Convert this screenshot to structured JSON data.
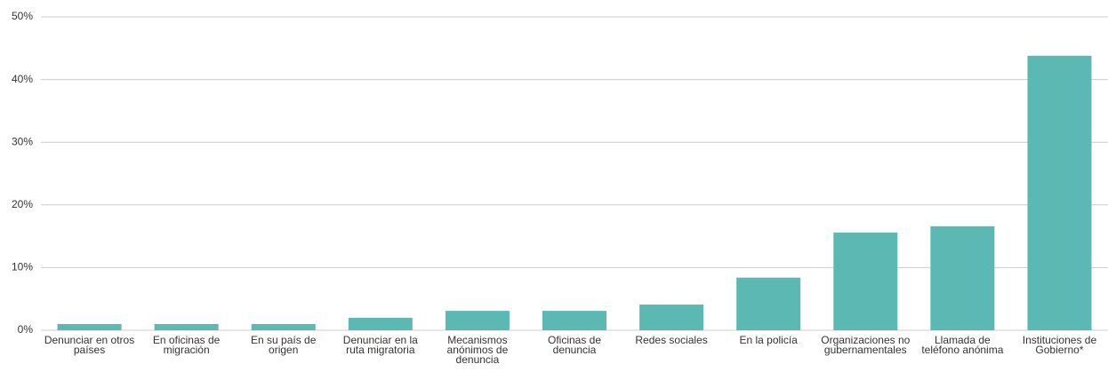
{
  "chart_data": {
    "type": "bar",
    "categories": [
      "Denunciar en otros países",
      "En oficinas de migración",
      "En su país de origen",
      "Denunciar en la ruta migratoria",
      "Mecanismos anónimos de denuncia",
      "Oficinas de denuncia",
      "Redes sociales",
      "En la policía",
      "Organizaciones no gubernamentales",
      "Llamada de teléfono anónima",
      "Instituciones de Gobierno*"
    ],
    "values": [
      1.0,
      1.0,
      1.0,
      2.0,
      3.1,
      3.1,
      4.1,
      8.4,
      15.6,
      16.6,
      43.8
    ],
    "color": "#5cb8b2",
    "ylim": [
      0,
      50
    ],
    "yticks": [
      {
        "value": 0,
        "label": "0%"
      },
      {
        "value": 10,
        "label": "10%"
      },
      {
        "value": 20,
        "label": "20%"
      },
      {
        "value": 30,
        "label": "30%"
      },
      {
        "value": 40,
        "label": "40%"
      },
      {
        "value": 50,
        "label": "50%"
      }
    ],
    "grid": true
  }
}
